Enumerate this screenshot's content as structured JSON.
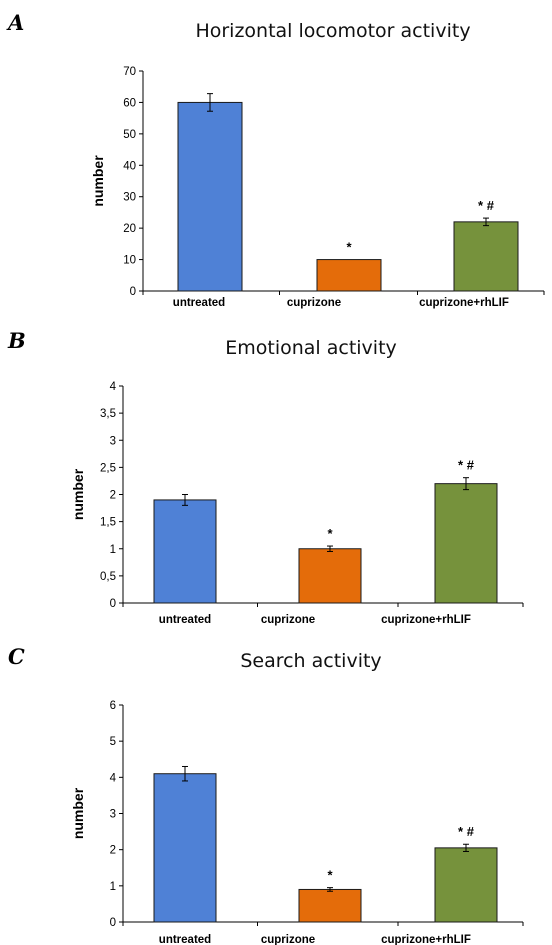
{
  "chart_data": [
    {
      "panel": "A",
      "type": "bar",
      "title": "Horizontal locomotor activity",
      "ylabel": "number",
      "xlabel": "",
      "categories": [
        "untreated",
        "cuprizone",
        "cuprizone+rhLIF"
      ],
      "values": [
        60,
        10,
        22
      ],
      "errors": [
        2.8,
        0,
        1.2
      ],
      "annotations": [
        "",
        "*",
        "* #"
      ],
      "ylim": [
        0,
        70
      ],
      "yticks": [
        0,
        10,
        20,
        30,
        40,
        50,
        60,
        70
      ],
      "ytick_labels": [
        "0",
        "10",
        "20",
        "30",
        "40",
        "50",
        "60",
        "70"
      ],
      "colors": [
        "#4f81d6",
        "#e46c0a",
        "#76923c"
      ],
      "grid": false
    },
    {
      "panel": "B",
      "type": "bar",
      "title": "Emotional activity",
      "ylabel": "number",
      "xlabel": "",
      "categories": [
        "untreated",
        "cuprizone",
        "cuprizone+rhLIF"
      ],
      "values": [
        1.9,
        1.0,
        2.2
      ],
      "errors": [
        0.1,
        0.05,
        0.11
      ],
      "annotations": [
        "",
        "*",
        "* #"
      ],
      "ylim": [
        0,
        4
      ],
      "yticks": [
        0,
        0.5,
        1,
        1.5,
        2,
        2.5,
        3,
        3.5,
        4
      ],
      "ytick_labels": [
        "0",
        "0,5",
        "1",
        "1,5",
        "2",
        "2,5",
        "3",
        "3,5",
        "4"
      ],
      "colors": [
        "#4f81d6",
        "#e46c0a",
        "#76923c"
      ],
      "grid": false
    },
    {
      "panel": "C",
      "type": "bar",
      "title": "Search activity",
      "ylabel": "number",
      "xlabel": "",
      "categories": [
        "untreated",
        "cuprizone",
        "cuprizone+rhLIF"
      ],
      "values": [
        4.1,
        0.9,
        2.05
      ],
      "errors": [
        0.2,
        0.05,
        0.1
      ],
      "annotations": [
        "",
        "*",
        "* #"
      ],
      "ylim": [
        0,
        6
      ],
      "yticks": [
        0,
        1,
        2,
        3,
        4,
        5,
        6
      ],
      "ytick_labels": [
        "0",
        "1",
        "2",
        "3",
        "4",
        "5",
        "6"
      ],
      "colors": [
        "#4f81d6",
        "#e46c0a",
        "#76923c"
      ],
      "grid": false
    }
  ]
}
